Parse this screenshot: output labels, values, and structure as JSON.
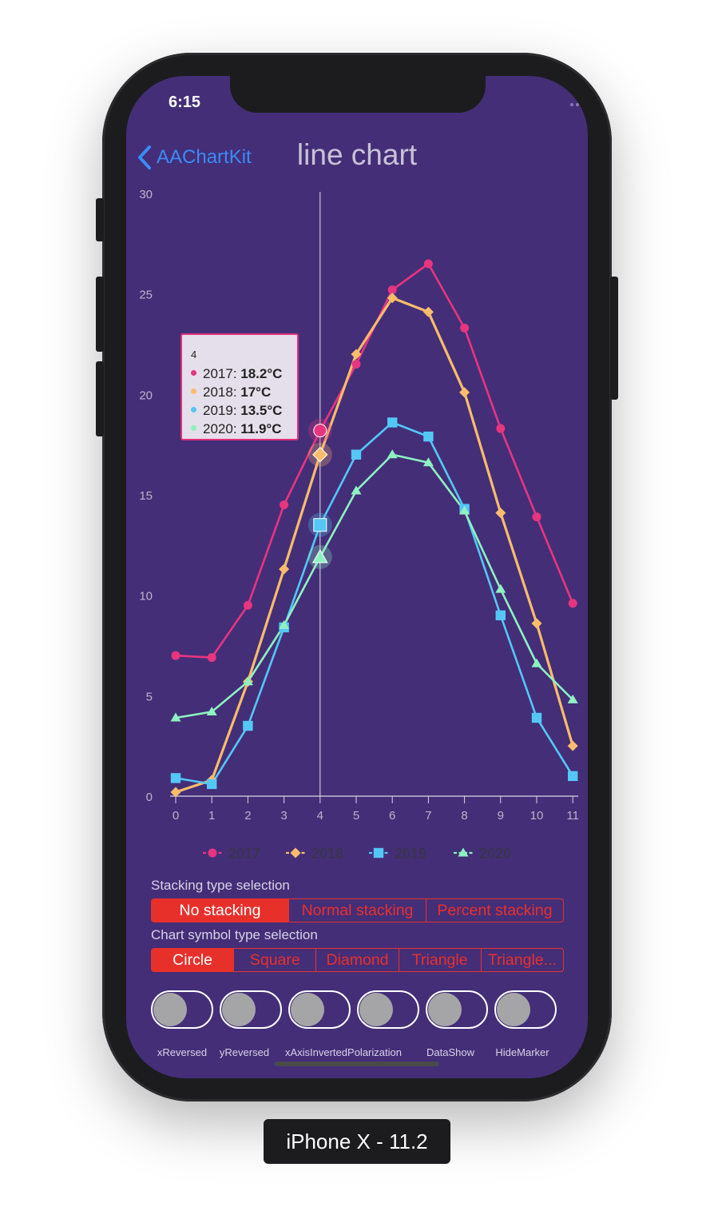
{
  "status_bar": {
    "time": "6:15"
  },
  "nav": {
    "back_label": "AAChartKit",
    "title": "line chart"
  },
  "colors": {
    "background": "#442e78",
    "series": [
      "#e7357f",
      "#fbbc6b",
      "#54c7f5",
      "#8ef1c2"
    ],
    "accent_red": "#e8302b",
    "back_link": "#3b8bf5",
    "axis_text": "#bcb4cc"
  },
  "chart_data": {
    "type": "line",
    "title": "",
    "xlabel": "",
    "ylabel": "",
    "x": [
      "0",
      "1",
      "2",
      "3",
      "4",
      "5",
      "6",
      "7",
      "8",
      "9",
      "10",
      "11"
    ],
    "ylim": [
      0,
      30
    ],
    "yticks": [
      "0",
      "5",
      "10",
      "15",
      "20",
      "25",
      "30"
    ],
    "grid": false,
    "legend_position": "bottom-center",
    "crosshair_x": "4",
    "series": [
      {
        "name": "2017",
        "marker": "circle",
        "color": "#e7357f",
        "values": [
          7.0,
          6.9,
          9.5,
          14.5,
          18.2,
          21.5,
          25.2,
          26.5,
          23.3,
          18.3,
          13.9,
          9.6
        ]
      },
      {
        "name": "2018",
        "marker": "diamond",
        "color": "#fbbc6b",
        "values": [
          0.2,
          0.8,
          5.7,
          11.3,
          17.0,
          22.0,
          24.8,
          24.1,
          20.1,
          14.1,
          8.6,
          2.5
        ]
      },
      {
        "name": "2019",
        "marker": "square",
        "color": "#54c7f5",
        "values": [
          0.9,
          0.6,
          3.5,
          8.4,
          13.5,
          17.0,
          18.6,
          17.9,
          14.3,
          9.0,
          3.9,
          1.0
        ]
      },
      {
        "name": "2020",
        "marker": "triangle",
        "color": "#8ef1c2",
        "values": [
          3.9,
          4.2,
          5.7,
          8.5,
          11.9,
          15.2,
          17.0,
          16.6,
          14.2,
          10.3,
          6.6,
          4.8
        ]
      }
    ],
    "tooltip": {
      "header": "4",
      "rows": [
        {
          "label": "2017: ",
          "value": "18.2°C"
        },
        {
          "label": "2018: ",
          "value": "17°C"
        },
        {
          "label": "2019: ",
          "value": "13.5°C"
        },
        {
          "label": "2020: ",
          "value": "11.9°C"
        }
      ]
    }
  },
  "controls": {
    "stacking_label": "Stacking type selection",
    "stacking_options": [
      "No stacking",
      "Normal stacking",
      "Percent stacking"
    ],
    "stacking_selected": "No stacking",
    "symbol_label": "Chart symbol type selection",
    "symbol_options": [
      "Circle",
      "Square",
      "Diamond",
      "Triangle",
      "Triangle..."
    ],
    "symbol_selected": "Circle",
    "switches": [
      {
        "label": "xReversed",
        "on": false
      },
      {
        "label": "yReversed",
        "on": false
      },
      {
        "label": "xAxisInverted",
        "on": false
      },
      {
        "label": "Polarization",
        "on": false
      },
      {
        "label": "DataShow",
        "on": false
      },
      {
        "label": "HideMarker",
        "on": false
      }
    ]
  },
  "device_label": "iPhone X - 11.2"
}
